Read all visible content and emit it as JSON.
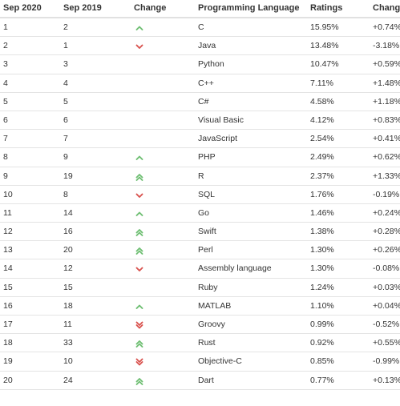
{
  "headers": {
    "rank_2020": "Sep 2020",
    "rank_2019": "Sep 2019",
    "change": "Change",
    "language": "Programming Language",
    "ratings": "Ratings",
    "delta": "Change"
  },
  "colors": {
    "up": "#6fbf73",
    "down": "#d9534f",
    "text": "#333333",
    "rule": "#e4e4e4"
  },
  "rows": [
    {
      "rank2020": "1",
      "rank2019": "2",
      "trend": "up",
      "language": "C",
      "rating": "15.95%",
      "delta": "+0.74%"
    },
    {
      "rank2020": "2",
      "rank2019": "1",
      "trend": "down",
      "language": "Java",
      "rating": "13.48%",
      "delta": "-3.18%"
    },
    {
      "rank2020": "3",
      "rank2019": "3",
      "trend": "none",
      "language": "Python",
      "rating": "10.47%",
      "delta": "+0.59%"
    },
    {
      "rank2020": "4",
      "rank2019": "4",
      "trend": "none",
      "language": "C++",
      "rating": "7.11%",
      "delta": "+1.48%"
    },
    {
      "rank2020": "5",
      "rank2019": "5",
      "trend": "none",
      "language": "C#",
      "rating": "4.58%",
      "delta": "+1.18%"
    },
    {
      "rank2020": "6",
      "rank2019": "6",
      "trend": "none",
      "language": "Visual Basic",
      "rating": "4.12%",
      "delta": "+0.83%"
    },
    {
      "rank2020": "7",
      "rank2019": "7",
      "trend": "none",
      "language": "JavaScript",
      "rating": "2.54%",
      "delta": "+0.41%"
    },
    {
      "rank2020": "8",
      "rank2019": "9",
      "trend": "up",
      "language": "PHP",
      "rating": "2.49%",
      "delta": "+0.62%"
    },
    {
      "rank2020": "9",
      "rank2019": "19",
      "trend": "up-double",
      "language": "R",
      "rating": "2.37%",
      "delta": "+1.33%"
    },
    {
      "rank2020": "10",
      "rank2019": "8",
      "trend": "down",
      "language": "SQL",
      "rating": "1.76%",
      "delta": "-0.19%"
    },
    {
      "rank2020": "11",
      "rank2019": "14",
      "trend": "up",
      "language": "Go",
      "rating": "1.46%",
      "delta": "+0.24%"
    },
    {
      "rank2020": "12",
      "rank2019": "16",
      "trend": "up-double",
      "language": "Swift",
      "rating": "1.38%",
      "delta": "+0.28%"
    },
    {
      "rank2020": "13",
      "rank2019": "20",
      "trend": "up-double",
      "language": "Perl",
      "rating": "1.30%",
      "delta": "+0.26%"
    },
    {
      "rank2020": "14",
      "rank2019": "12",
      "trend": "down",
      "language": "Assembly language",
      "rating": "1.30%",
      "delta": "-0.08%"
    },
    {
      "rank2020": "15",
      "rank2019": "15",
      "trend": "none",
      "language": "Ruby",
      "rating": "1.24%",
      "delta": "+0.03%"
    },
    {
      "rank2020": "16",
      "rank2019": "18",
      "trend": "up",
      "language": "MATLAB",
      "rating": "1.10%",
      "delta": "+0.04%"
    },
    {
      "rank2020": "17",
      "rank2019": "11",
      "trend": "down-double",
      "language": "Groovy",
      "rating": "0.99%",
      "delta": "-0.52%"
    },
    {
      "rank2020": "18",
      "rank2019": "33",
      "trend": "up-double",
      "language": "Rust",
      "rating": "0.92%",
      "delta": "+0.55%"
    },
    {
      "rank2020": "19",
      "rank2019": "10",
      "trend": "down-double",
      "language": "Objective-C",
      "rating": "0.85%",
      "delta": "-0.99%"
    },
    {
      "rank2020": "20",
      "rank2019": "24",
      "trend": "up-double",
      "language": "Dart",
      "rating": "0.77%",
      "delta": "+0.13%"
    }
  ]
}
